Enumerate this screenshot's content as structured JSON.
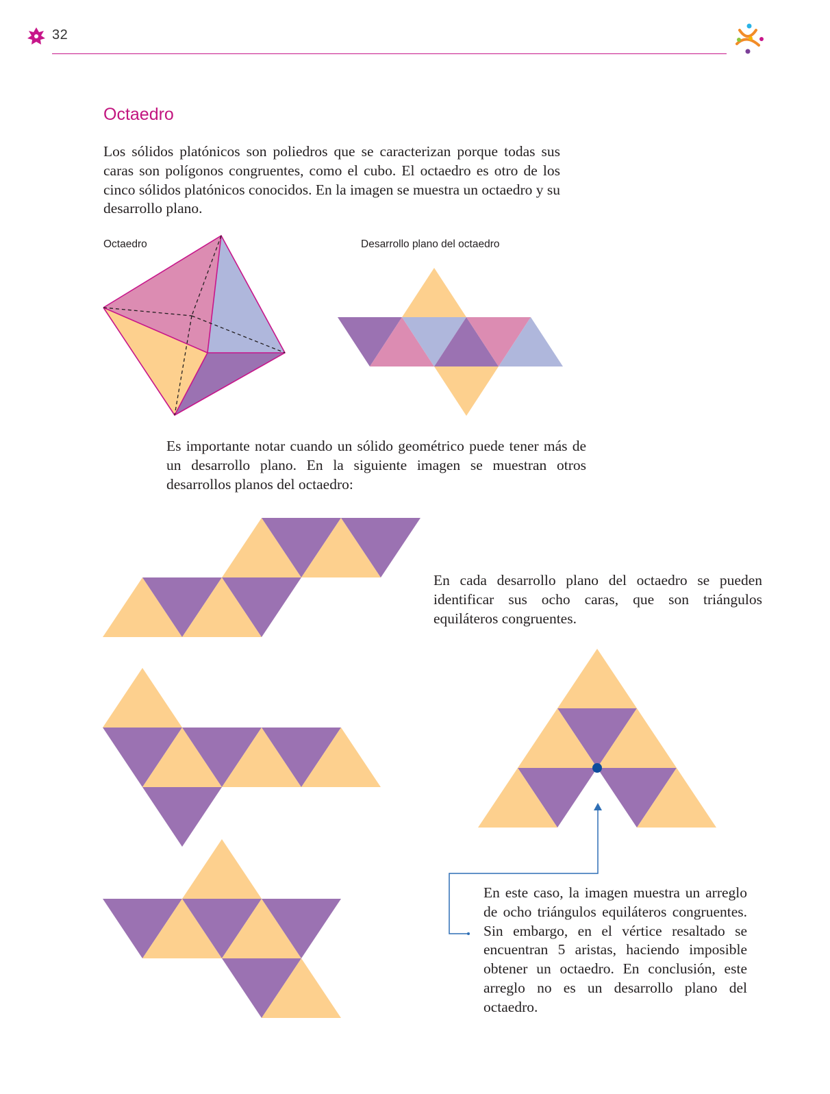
{
  "header": {
    "page_number": "32",
    "ornament_icon": "flower-ornament-icon",
    "logo_icon": "colorful-figures-logo-icon"
  },
  "section": {
    "title": "Octaedro",
    "intro": "Los sólidos platónicos son poliedros que se caracterizan porque todas sus caras son polígonos congruentes, como el cubo. El octaedro es otro de los cinco sólidos platónicos conocidos. En la imagen se muestra un octaedro y su desarrollo plano.",
    "figure_captions": {
      "solid": "Octaedro",
      "net": "Desarrollo plano del octaedro"
    },
    "note_multiple_nets": "Es importante notar cuando un sólido geométrico puede tener más de un desarrollo plano. En la siguiente imagen se muestran otros desarrollos planos del octaedro:",
    "note_faces": "En cada desarrollo plano del octaedro se pueden identificar sus ocho caras, que son triángulos equiláteros congruentes.",
    "callout": "En este caso, la imagen muestra un arreglo de ocho triángulos equiláteros congruentes. Sin embargo, en el vértice resaltado se encuentran 5 aristas, haciendo imposible obtener un octaedro. En conclusión, este arreglo no es un desarrollo plano del octaedro."
  },
  "colors": {
    "accent": "#c2157f",
    "orange": "#fdd08e",
    "purple": "#9b72b2",
    "pink": "#dc8cb2",
    "blue": "#afb7dc",
    "highlight_vertex": "#0e4d9c"
  }
}
